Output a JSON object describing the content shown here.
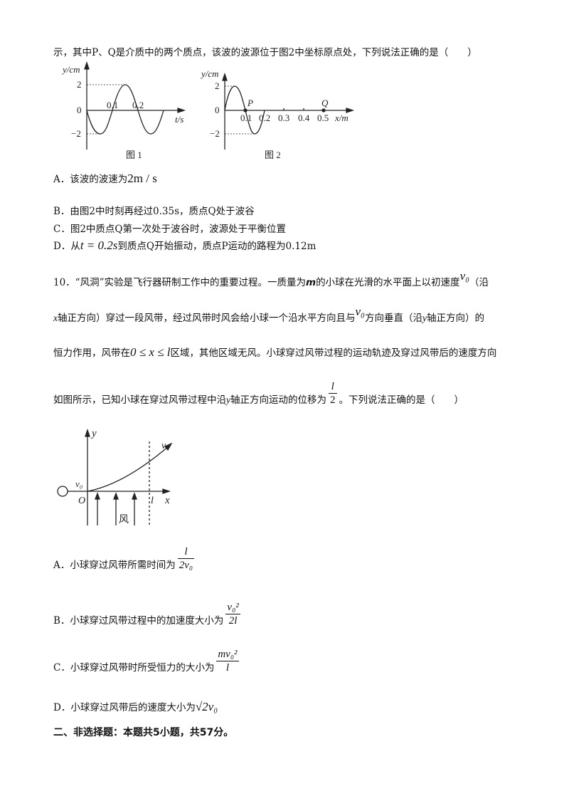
{
  "q9": {
    "stem": "示，其中P、Q是介质中的两个质点，该波的波源位于图2中坐标原点处，下列说法正确的是（　　）",
    "fig1": {
      "ylabel": "y/cm",
      "xlabel": "t/s",
      "y_ticks": [
        "2",
        "0",
        "−2"
      ],
      "x_ticks": [
        "0.1",
        "0.2"
      ],
      "caption": "图 1"
    },
    "fig2": {
      "ylabel": "y/cm",
      "xlabel": "x/m",
      "y_ticks": [
        "2",
        "0",
        "−2"
      ],
      "x_ticks": [
        "0.1",
        "0.2",
        "0.3",
        "0.4",
        "0.5"
      ],
      "point_p": "P",
      "point_q": "Q",
      "caption": "图 2"
    },
    "options": {
      "a_prefix": "A．该波的波速为",
      "a_math": "2m / s",
      "b": "B．由图2中时刻再经过0.35s，质点Q处于波谷",
      "c": "C．图2中质点Q第一次处于波谷时，波源处于平衡位置",
      "d_prefix": "D．从",
      "d_math": "t = 0.2s",
      "d_suffix": "到质点Q开始振动，质点P运动的路程为0.12m"
    }
  },
  "q10": {
    "line1_a": "10．“风洞”实验是飞行器研制工作中的重要过程。一质量为",
    "line1_m": "m",
    "line1_b": "的小球在光滑的水平面上以初速度",
    "line1_v0": "v₀",
    "line1_c": "（沿",
    "line2_a": "x",
    "line2_b": "轴正方向）穿过一段风带，经过风带时风会给小球一个沿水平方向且与",
    "line2_v0": "v₀",
    "line2_c": "方向垂直（沿",
    "line2_y": "y",
    "line2_d": "轴正方向）的",
    "line3_a": "恒力作用，风带在",
    "line3_math": "0 ≤ x ≤ l",
    "line3_b": "区域，其他区域无风。小球穿过风带过程的运动轨迹及穿过风带后的速度方向",
    "line4_a": "如图所示，已知小球在穿过风带过程中沿",
    "line4_y": "y",
    "line4_b": "轴正方向运动的位移为",
    "line4_num": "l",
    "line4_den": "2",
    "line4_c": "。下列说法正确的是（　　）",
    "fig": {
      "y_label": "y",
      "x_label": "x",
      "origin": "O",
      "v0": "v₀",
      "v": "v",
      "l": "l",
      "wind": "风"
    },
    "options": {
      "a": "A．小球穿过风带所需时间为",
      "a_num": "l",
      "a_den": "2v₀",
      "b": "B．小球穿过风带过程中的加速度大小为",
      "b_num": "v₀²",
      "b_den": "2l",
      "c": "C．小球穿过风带时所受恒力的大小为",
      "c_num": "mv₀²",
      "c_den": "l",
      "d": "D．小球穿过风带后的速度大小为",
      "d_math": "√2v₀"
    }
  },
  "section2": "二、非选择题：本题共5小题，共57分。"
}
